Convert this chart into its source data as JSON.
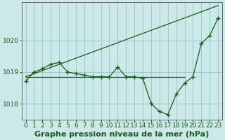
{
  "background_color": "#cce8e8",
  "grid_color": "#99cccc",
  "line_color": "#1a5c1a",
  "marker_color": "#1a5c1a",
  "title": "Graphe pression niveau de la mer (hPa)",
  "xlim": [
    -0.5,
    23.5
  ],
  "ylim": [
    1017.5,
    1021.2
  ],
  "yticks": [
    1018,
    1019,
    1020
  ],
  "xticks": [
    0,
    1,
    2,
    3,
    4,
    5,
    6,
    7,
    8,
    9,
    10,
    11,
    12,
    13,
    14,
    15,
    16,
    17,
    18,
    19,
    20,
    21,
    22,
    23
  ],
  "series": [
    {
      "x": [
        0,
        19
      ],
      "y": [
        1018.85,
        1018.85
      ],
      "markers": false
    },
    {
      "x": [
        0,
        1,
        2,
        3,
        4,
        5,
        6,
        7,
        8,
        9,
        10,
        11,
        12,
        13,
        14,
        15,
        16,
        17,
        18,
        19,
        20,
        21,
        22,
        23
      ],
      "y": [
        1018.7,
        1019.0,
        1019.1,
        1019.25,
        1019.3,
        1019.0,
        1018.95,
        1018.9,
        1018.85,
        1018.85,
        1018.85,
        1019.15,
        1018.85,
        1018.85,
        1018.8,
        1018.0,
        1017.75,
        1017.65,
        1018.3,
        1018.65,
        1018.85,
        1019.9,
        1020.15,
        1020.7
      ],
      "markers": true
    },
    {
      "x": [
        0,
        23
      ],
      "y": [
        1018.85,
        1021.1
      ],
      "markers": false
    }
  ],
  "title_fontsize": 8,
  "tick_fontsize": 6.5
}
